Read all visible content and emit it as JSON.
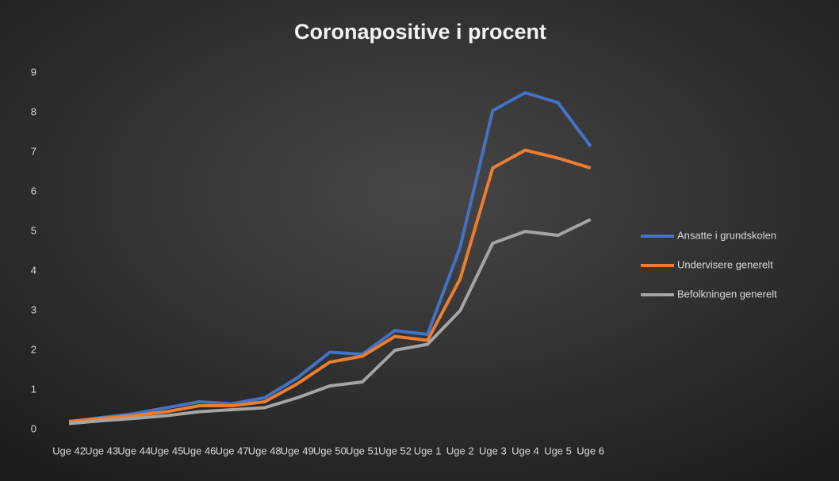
{
  "chart_data": {
    "type": "line",
    "title": "Coronapositive  i procent",
    "categories": [
      "Uge 42",
      "Uge 43",
      "Uge 44",
      "Uge 45",
      "Uge 46",
      "Uge 47",
      "Uge 48",
      "Uge 49",
      "Uge 50",
      "Uge 51",
      "Uge 52",
      "Uge 1",
      "Uge 2",
      "Uge 3",
      "Uge 4",
      "Uge 5",
      "Uge 6"
    ],
    "series": [
      {
        "name": "Ansatte i grundskolen",
        "color": "#4472c4",
        "values": [
          0.2,
          0.3,
          0.4,
          0.55,
          0.7,
          0.65,
          0.8,
          1.3,
          1.95,
          1.9,
          2.5,
          2.4,
          4.6,
          8.05,
          8.5,
          8.25,
          7.15
        ]
      },
      {
        "name": "Undervisere generelt",
        "color": "#ed7d31",
        "values": [
          0.2,
          0.28,
          0.35,
          0.45,
          0.6,
          0.6,
          0.7,
          1.15,
          1.7,
          1.85,
          2.35,
          2.25,
          3.8,
          6.6,
          7.05,
          6.85,
          6.6
        ]
      },
      {
        "name": "Befolkningen generelt",
        "color": "#a5a5a5",
        "values": [
          0.15,
          0.22,
          0.28,
          0.35,
          0.45,
          0.5,
          0.55,
          0.8,
          1.1,
          1.2,
          2.0,
          2.15,
          3.0,
          4.7,
          5.0,
          4.9,
          5.3
        ]
      }
    ],
    "ylim": [
      0,
      9
    ],
    "yticks": [
      0,
      1,
      2,
      3,
      4,
      5,
      6,
      7,
      8,
      9
    ],
    "grid": false,
    "legend": "right"
  }
}
